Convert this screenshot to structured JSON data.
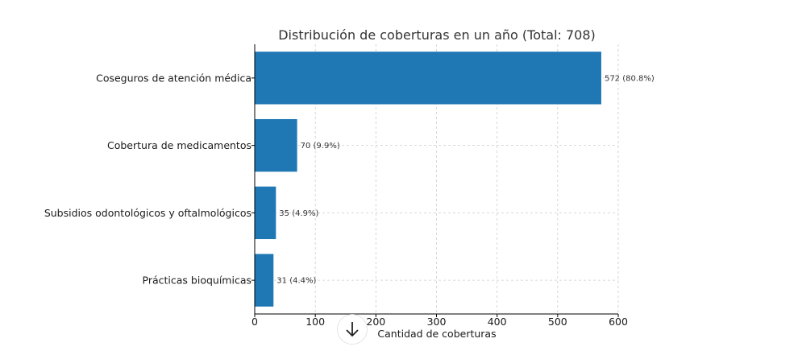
{
  "chart_data": {
    "type": "bar",
    "orientation": "horizontal",
    "title": "Distribución de coberturas en un año (Total: 708)",
    "categories": [
      "Coseguros de atención médica",
      "Cobertura de medicamentos",
      "Subsidios odontológicos y oftalmológicos",
      "Prácticas bioquímicas"
    ],
    "values": [
      572,
      70,
      35,
      31
    ],
    "data_labels": [
      "572 (80.8%)",
      "70 (9.9%)",
      "35 (4.9%)",
      "31 (4.4%)"
    ],
    "xlabel": "Cantidad de coberturas",
    "ylabel": "",
    "xlim": [
      0,
      600
    ],
    "xticks": [
      0,
      100,
      200,
      300,
      400,
      500,
      600
    ],
    "grid": true,
    "bar_color": "#1f77b4"
  },
  "overlay": {
    "scroll_button_icon": "arrow-down-icon"
  }
}
